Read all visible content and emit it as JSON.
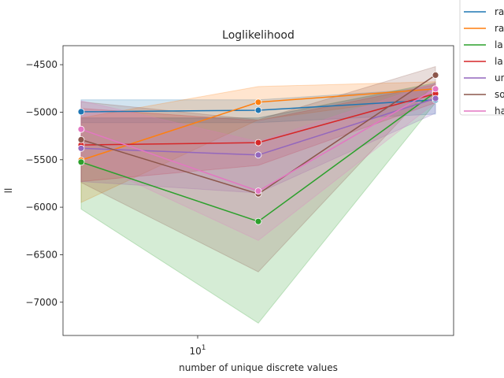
{
  "chart_data": {
    "type": "line",
    "title": "Loglikelihood",
    "xlabel": "number of unique discrete values",
    "ylabel": "ll",
    "x": [
      5,
      15,
      45
    ],
    "xscale": "log",
    "xtick_labels": [
      {
        "value": 10,
        "base": "10",
        "exp": "1"
      }
    ],
    "ylim": [
      -7350,
      -4300
    ],
    "yticks": [
      -7000,
      -6500,
      -6000,
      -5500,
      -5000,
      -4500
    ],
    "ytick_labels": [
      "−7000",
      "−6500",
      "−6000",
      "−5500",
      "−5000",
      "−4500"
    ],
    "grid": false,
    "legend_position": "upper right, outside plot",
    "series": [
      {
        "name": "ra",
        "color": "#1f77b4",
        "values": [
          -4995,
          -4980,
          -4870
        ],
        "ci_low": [
          -5110,
          -5110,
          -5020
        ],
        "ci_high": [
          -4870,
          -4870,
          -4750
        ]
      },
      {
        "name": "ra",
        "color": "#ff7f0e",
        "values": [
          -5505,
          -4895,
          -4755
        ],
        "ci_low": [
          -5950,
          -5080,
          -4830
        ],
        "ci_high": [
          -5060,
          -4730,
          -4680
        ]
      },
      {
        "name": "la",
        "color": "#2ca02c",
        "values": [
          -5525,
          -6150,
          -4790
        ],
        "ci_low": [
          -6020,
          -7220,
          -4900
        ],
        "ci_high": [
          -5060,
          -5060,
          -4690
        ]
      },
      {
        "name": "la",
        "color": "#d62728",
        "values": [
          -5345,
          -5320,
          -4805
        ],
        "ci_low": [
          -5730,
          -5560,
          -4900
        ],
        "ci_high": [
          -4960,
          -5090,
          -4710
        ]
      },
      {
        "name": "un",
        "color": "#9467bd",
        "values": [
          -5380,
          -5450,
          -4855
        ],
        "ci_low": [
          -5730,
          -5850,
          -5010
        ],
        "ci_high": [
          -5060,
          -5060,
          -4700
        ]
      },
      {
        "name": "so",
        "color": "#8c564b",
        "values": [
          -5290,
          -5860,
          -4610
        ],
        "ci_low": [
          -5740,
          -6680,
          -4690
        ],
        "ci_high": [
          -4890,
          -5080,
          -4520
        ]
      },
      {
        "name": "ha",
        "color": "#e377c2",
        "values": [
          -5180,
          -5830,
          -4755
        ],
        "ci_low": [
          -5480,
          -6350,
          -4900
        ],
        "ci_high": [
          -4880,
          -5310,
          -4690
        ]
      }
    ]
  }
}
